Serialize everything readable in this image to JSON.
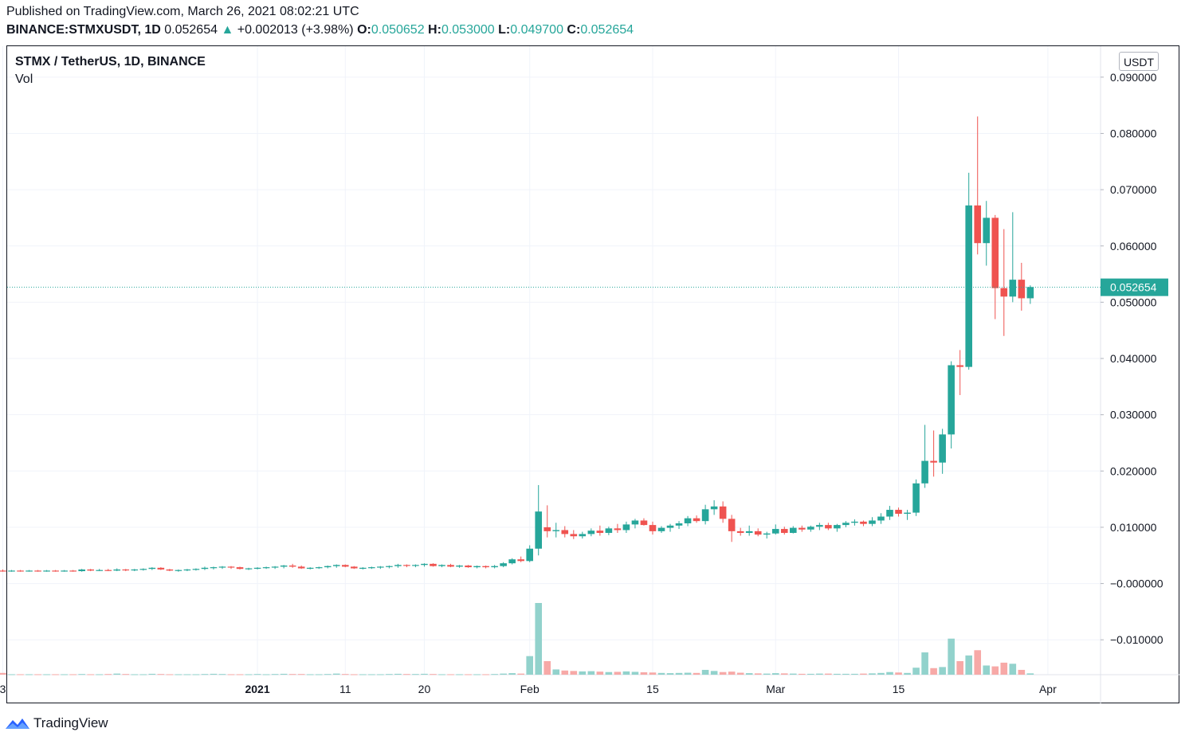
{
  "header": {
    "published": "Published on TradingView.com, March 26, 2021 08:02:21 UTC",
    "symbol": "BINANCE:STMXUSDT, 1D",
    "last": "0.052654",
    "arrow": "▲",
    "change": "+0.002013 (+3.98%)",
    "o_label": "O:",
    "o_value": "0.050652",
    "h_label": "H:",
    "h_value": "0.053000",
    "l_label": "L:",
    "l_value": "0.049700",
    "c_label": "C:",
    "c_value": "0.052654"
  },
  "legend": {
    "title": "STMX / TetherUS, 1D, BINANCE",
    "vol": "Vol"
  },
  "currency_button": "USDT",
  "footer": {
    "brand": "TradingView"
  },
  "colors": {
    "up": "#26a69a",
    "down": "#ef5350",
    "vol_up": "#92d2cc",
    "vol_down": "#f7a9a7",
    "grid": "#f0f3fa"
  },
  "chart_data": {
    "type": "candlestick",
    "y_ticks": [
      "0.090000",
      "0.080000",
      "0.070000",
      "0.060000",
      "0.050000",
      "0.040000",
      "0.030000",
      "0.020000",
      "0.010000",
      "−0.000000",
      "−0.010000"
    ],
    "y_tick_values": [
      0.09,
      0.08,
      0.07,
      0.06,
      0.05,
      0.04,
      0.03,
      0.02,
      0.01,
      0,
      -0.01
    ],
    "x_ticks": [
      {
        "label": "3",
        "day": 3
      },
      {
        "label": "2021",
        "day": 32
      },
      {
        "label": "11",
        "day": 42
      },
      {
        "label": "20",
        "day": 51
      },
      {
        "label": "Feb",
        "day": 63
      },
      {
        "label": "15",
        "day": 77
      },
      {
        "label": "Mar",
        "day": 91
      },
      {
        "label": "15",
        "day": 105
      },
      {
        "label": "Apr",
        "day": 122
      }
    ],
    "x_range_days": [
      3.5,
      128
    ],
    "y_range": [
      -0.0162,
      0.0955
    ],
    "last_price": 0.052654,
    "last_price_label": "0.052654",
    "vol_max": 1.0,
    "candles": [
      {
        "d": 3,
        "o": 0.0023,
        "h": 0.0025,
        "l": 0.0021,
        "c": 0.0022,
        "v": 0.08
      },
      {
        "d": 4,
        "o": 0.0022,
        "h": 0.0024,
        "l": 0.0021,
        "c": 0.0023,
        "v": 0.02
      },
      {
        "d": 5,
        "o": 0.0023,
        "h": 0.0024,
        "l": 0.0021,
        "c": 0.0022,
        "v": 0.02
      },
      {
        "d": 6,
        "o": 0.0022,
        "h": 0.0024,
        "l": 0.0021,
        "c": 0.0023,
        "v": 0.02
      },
      {
        "d": 7,
        "o": 0.0023,
        "h": 0.0024,
        "l": 0.0021,
        "c": 0.0022,
        "v": 0.02
      },
      {
        "d": 8,
        "o": 0.0022,
        "h": 0.0024,
        "l": 0.0021,
        "c": 0.0023,
        "v": 0.02
      },
      {
        "d": 9,
        "o": 0.0023,
        "h": 0.0024,
        "l": 0.0021,
        "c": 0.0022,
        "v": 0.02
      },
      {
        "d": 10,
        "o": 0.0022,
        "h": 0.0024,
        "l": 0.0021,
        "c": 0.0023,
        "v": 0.02
      },
      {
        "d": 11,
        "o": 0.0023,
        "h": 0.0024,
        "l": 0.0021,
        "c": 0.0022,
        "v": 0.02
      },
      {
        "d": 12,
        "o": 0.0022,
        "h": 0.0026,
        "l": 0.0021,
        "c": 0.0025,
        "v": 0.03
      },
      {
        "d": 13,
        "o": 0.0025,
        "h": 0.0026,
        "l": 0.0022,
        "c": 0.0023,
        "v": 0.02
      },
      {
        "d": 14,
        "o": 0.0023,
        "h": 0.0026,
        "l": 0.0022,
        "c": 0.0024,
        "v": 0.02
      },
      {
        "d": 15,
        "o": 0.0024,
        "h": 0.0026,
        "l": 0.0022,
        "c": 0.0023,
        "v": 0.03
      },
      {
        "d": 16,
        "o": 0.0023,
        "h": 0.0027,
        "l": 0.0022,
        "c": 0.0025,
        "v": 0.05
      },
      {
        "d": 17,
        "o": 0.0025,
        "h": 0.0026,
        "l": 0.0022,
        "c": 0.0024,
        "v": 0.03
      },
      {
        "d": 18,
        "o": 0.0024,
        "h": 0.0026,
        "l": 0.0022,
        "c": 0.0025,
        "v": 0.02
      },
      {
        "d": 19,
        "o": 0.0025,
        "h": 0.0027,
        "l": 0.0023,
        "c": 0.0026,
        "v": 0.02
      },
      {
        "d": 20,
        "o": 0.0026,
        "h": 0.0029,
        "l": 0.0024,
        "c": 0.0028,
        "v": 0.04
      },
      {
        "d": 21,
        "o": 0.0028,
        "h": 0.0029,
        "l": 0.0024,
        "c": 0.0025,
        "v": 0.03
      },
      {
        "d": 22,
        "o": 0.0025,
        "h": 0.0026,
        "l": 0.0022,
        "c": 0.0023,
        "v": 0.02
      },
      {
        "d": 23,
        "o": 0.0023,
        "h": 0.0025,
        "l": 0.0021,
        "c": 0.0024,
        "v": 0.02
      },
      {
        "d": 24,
        "o": 0.0024,
        "h": 0.0026,
        "l": 0.0022,
        "c": 0.0025,
        "v": 0.02
      },
      {
        "d": 25,
        "o": 0.0025,
        "h": 0.0027,
        "l": 0.0023,
        "c": 0.0026,
        "v": 0.02
      },
      {
        "d": 26,
        "o": 0.0026,
        "h": 0.003,
        "l": 0.0024,
        "c": 0.0028,
        "v": 0.03
      },
      {
        "d": 27,
        "o": 0.0028,
        "h": 0.003,
        "l": 0.0025,
        "c": 0.0029,
        "v": 0.04
      },
      {
        "d": 28,
        "o": 0.0029,
        "h": 0.0031,
        "l": 0.0026,
        "c": 0.003,
        "v": 0.03
      },
      {
        "d": 29,
        "o": 0.003,
        "h": 0.0031,
        "l": 0.0026,
        "c": 0.0029,
        "v": 0.02
      },
      {
        "d": 30,
        "o": 0.0029,
        "h": 0.003,
        "l": 0.0025,
        "c": 0.0026,
        "v": 0.02
      },
      {
        "d": 31,
        "o": 0.0026,
        "h": 0.0028,
        "l": 0.0024,
        "c": 0.0027,
        "v": 0.02
      },
      {
        "d": 32,
        "o": 0.0027,
        "h": 0.0029,
        "l": 0.0025,
        "c": 0.0028,
        "v": 0.03
      },
      {
        "d": 33,
        "o": 0.0028,
        "h": 0.003,
        "l": 0.0026,
        "c": 0.0029,
        "v": 0.02
      },
      {
        "d": 34,
        "o": 0.0029,
        "h": 0.0031,
        "l": 0.0026,
        "c": 0.003,
        "v": 0.03
      },
      {
        "d": 35,
        "o": 0.003,
        "h": 0.0033,
        "l": 0.0027,
        "c": 0.0032,
        "v": 0.04
      },
      {
        "d": 36,
        "o": 0.0032,
        "h": 0.0035,
        "l": 0.0028,
        "c": 0.003,
        "v": 0.03
      },
      {
        "d": 37,
        "o": 0.003,
        "h": 0.0032,
        "l": 0.0026,
        "c": 0.0027,
        "v": 0.03
      },
      {
        "d": 38,
        "o": 0.0027,
        "h": 0.0029,
        "l": 0.0025,
        "c": 0.0028,
        "v": 0.02
      },
      {
        "d": 39,
        "o": 0.0028,
        "h": 0.003,
        "l": 0.0026,
        "c": 0.0029,
        "v": 0.02
      },
      {
        "d": 40,
        "o": 0.0029,
        "h": 0.0032,
        "l": 0.0027,
        "c": 0.0031,
        "v": 0.03
      },
      {
        "d": 41,
        "o": 0.0031,
        "h": 0.0034,
        "l": 0.0028,
        "c": 0.0033,
        "v": 0.05
      },
      {
        "d": 42,
        "o": 0.0033,
        "h": 0.0034,
        "l": 0.0029,
        "c": 0.003,
        "v": 0.03
      },
      {
        "d": 43,
        "o": 0.003,
        "h": 0.0031,
        "l": 0.0026,
        "c": 0.0027,
        "v": 0.02
      },
      {
        "d": 44,
        "o": 0.0027,
        "h": 0.0029,
        "l": 0.0025,
        "c": 0.0028,
        "v": 0.02
      },
      {
        "d": 45,
        "o": 0.0028,
        "h": 0.003,
        "l": 0.0026,
        "c": 0.0029,
        "v": 0.02
      },
      {
        "d": 46,
        "o": 0.0029,
        "h": 0.0031,
        "l": 0.0026,
        "c": 0.003,
        "v": 0.02
      },
      {
        "d": 47,
        "o": 0.003,
        "h": 0.0032,
        "l": 0.0027,
        "c": 0.0031,
        "v": 0.03
      },
      {
        "d": 48,
        "o": 0.0031,
        "h": 0.0035,
        "l": 0.0028,
        "c": 0.0033,
        "v": 0.04
      },
      {
        "d": 49,
        "o": 0.0033,
        "h": 0.0034,
        "l": 0.0029,
        "c": 0.0032,
        "v": 0.03
      },
      {
        "d": 50,
        "o": 0.0032,
        "h": 0.0034,
        "l": 0.0029,
        "c": 0.0033,
        "v": 0.03
      },
      {
        "d": 51,
        "o": 0.0033,
        "h": 0.0036,
        "l": 0.003,
        "c": 0.0035,
        "v": 0.04
      },
      {
        "d": 52,
        "o": 0.0035,
        "h": 0.0036,
        "l": 0.003,
        "c": 0.0031,
        "v": 0.03
      },
      {
        "d": 53,
        "o": 0.0031,
        "h": 0.0034,
        "l": 0.0029,
        "c": 0.0033,
        "v": 0.02
      },
      {
        "d": 54,
        "o": 0.0033,
        "h": 0.0035,
        "l": 0.0029,
        "c": 0.003,
        "v": 0.02
      },
      {
        "d": 55,
        "o": 0.003,
        "h": 0.0033,
        "l": 0.0028,
        "c": 0.0032,
        "v": 0.02
      },
      {
        "d": 56,
        "o": 0.0032,
        "h": 0.0033,
        "l": 0.0028,
        "c": 0.0029,
        "v": 0.02
      },
      {
        "d": 57,
        "o": 0.0029,
        "h": 0.0032,
        "l": 0.0027,
        "c": 0.0031,
        "v": 0.02
      },
      {
        "d": 58,
        "o": 0.0031,
        "h": 0.0032,
        "l": 0.0027,
        "c": 0.0029,
        "v": 0.02
      },
      {
        "d": 59,
        "o": 0.0029,
        "h": 0.0033,
        "l": 0.0027,
        "c": 0.0031,
        "v": 0.03
      },
      {
        "d": 60,
        "o": 0.0031,
        "h": 0.0038,
        "l": 0.0029,
        "c": 0.0036,
        "v": 0.05
      },
      {
        "d": 61,
        "o": 0.0036,
        "h": 0.0045,
        "l": 0.0034,
        "c": 0.0043,
        "v": 0.07
      },
      {
        "d": 62,
        "o": 0.0043,
        "h": 0.0048,
        "l": 0.0038,
        "c": 0.004,
        "v": 0.05
      },
      {
        "d": 63,
        "o": 0.004,
        "h": 0.0068,
        "l": 0.0038,
        "c": 0.0062,
        "v": 0.85
      },
      {
        "d": 64,
        "o": 0.0062,
        "h": 0.0175,
        "l": 0.005,
        "c": 0.0128,
        "v": 3.28
      },
      {
        "d": 65,
        "o": 0.01,
        "h": 0.0139,
        "l": 0.0082,
        "c": 0.0093,
        "v": 0.62
      },
      {
        "d": 66,
        "o": 0.0093,
        "h": 0.0108,
        "l": 0.0082,
        "c": 0.0095,
        "v": 0.24
      },
      {
        "d": 67,
        "o": 0.0095,
        "h": 0.0102,
        "l": 0.0082,
        "c": 0.0088,
        "v": 0.19
      },
      {
        "d": 68,
        "o": 0.0088,
        "h": 0.0095,
        "l": 0.0079,
        "c": 0.0084,
        "v": 0.17
      },
      {
        "d": 69,
        "o": 0.0084,
        "h": 0.0092,
        "l": 0.008,
        "c": 0.0088,
        "v": 0.15
      },
      {
        "d": 70,
        "o": 0.0088,
        "h": 0.0098,
        "l": 0.0084,
        "c": 0.0094,
        "v": 0.16
      },
      {
        "d": 71,
        "o": 0.0094,
        "h": 0.0103,
        "l": 0.0085,
        "c": 0.009,
        "v": 0.14
      },
      {
        "d": 72,
        "o": 0.009,
        "h": 0.0101,
        "l": 0.0086,
        "c": 0.0098,
        "v": 0.12
      },
      {
        "d": 73,
        "o": 0.0098,
        "h": 0.0106,
        "l": 0.009,
        "c": 0.0095,
        "v": 0.13
      },
      {
        "d": 74,
        "o": 0.0095,
        "h": 0.011,
        "l": 0.009,
        "c": 0.0105,
        "v": 0.15
      },
      {
        "d": 75,
        "o": 0.0105,
        "h": 0.0115,
        "l": 0.0098,
        "c": 0.0112,
        "v": 0.13
      },
      {
        "d": 76,
        "o": 0.0112,
        "h": 0.0116,
        "l": 0.0103,
        "c": 0.0104,
        "v": 0.11
      },
      {
        "d": 77,
        "o": 0.0104,
        "h": 0.011,
        "l": 0.0087,
        "c": 0.0093,
        "v": 0.1
      },
      {
        "d": 78,
        "o": 0.0093,
        "h": 0.0102,
        "l": 0.009,
        "c": 0.0099,
        "v": 0.08
      },
      {
        "d": 79,
        "o": 0.0099,
        "h": 0.0106,
        "l": 0.0092,
        "c": 0.0103,
        "v": 0.07
      },
      {
        "d": 80,
        "o": 0.0103,
        "h": 0.0111,
        "l": 0.0097,
        "c": 0.0107,
        "v": 0.08
      },
      {
        "d": 81,
        "o": 0.0107,
        "h": 0.012,
        "l": 0.0102,
        "c": 0.0116,
        "v": 0.09
      },
      {
        "d": 82,
        "o": 0.0116,
        "h": 0.0121,
        "l": 0.0108,
        "c": 0.0111,
        "v": 0.08
      },
      {
        "d": 83,
        "o": 0.0111,
        "h": 0.014,
        "l": 0.0105,
        "c": 0.0132,
        "v": 0.22
      },
      {
        "d": 84,
        "o": 0.0132,
        "h": 0.0148,
        "l": 0.0122,
        "c": 0.0137,
        "v": 0.17
      },
      {
        "d": 85,
        "o": 0.0137,
        "h": 0.0146,
        "l": 0.0108,
        "c": 0.0115,
        "v": 0.12
      },
      {
        "d": 86,
        "o": 0.0115,
        "h": 0.0122,
        "l": 0.0074,
        "c": 0.0093,
        "v": 0.14
      },
      {
        "d": 87,
        "o": 0.0093,
        "h": 0.0099,
        "l": 0.0085,
        "c": 0.009,
        "v": 0.09
      },
      {
        "d": 88,
        "o": 0.009,
        "h": 0.0103,
        "l": 0.0085,
        "c": 0.0093,
        "v": 0.07
      },
      {
        "d": 89,
        "o": 0.0093,
        "h": 0.0098,
        "l": 0.0084,
        "c": 0.0087,
        "v": 0.06
      },
      {
        "d": 90,
        "o": 0.0087,
        "h": 0.0092,
        "l": 0.008,
        "c": 0.0089,
        "v": 0.05
      },
      {
        "d": 91,
        "o": 0.0089,
        "h": 0.0105,
        "l": 0.0087,
        "c": 0.0097,
        "v": 0.07
      },
      {
        "d": 92,
        "o": 0.0097,
        "h": 0.0101,
        "l": 0.0087,
        "c": 0.009,
        "v": 0.06
      },
      {
        "d": 93,
        "o": 0.009,
        "h": 0.0102,
        "l": 0.0089,
        "c": 0.0099,
        "v": 0.05
      },
      {
        "d": 94,
        "o": 0.0099,
        "h": 0.0103,
        "l": 0.0092,
        "c": 0.0096,
        "v": 0.04
      },
      {
        "d": 95,
        "o": 0.0096,
        "h": 0.0103,
        "l": 0.0092,
        "c": 0.0101,
        "v": 0.04
      },
      {
        "d": 96,
        "o": 0.0101,
        "h": 0.0108,
        "l": 0.0095,
        "c": 0.0104,
        "v": 0.05
      },
      {
        "d": 97,
        "o": 0.0104,
        "h": 0.0108,
        "l": 0.0095,
        "c": 0.0098,
        "v": 0.05
      },
      {
        "d": 98,
        "o": 0.0098,
        "h": 0.0106,
        "l": 0.0092,
        "c": 0.0104,
        "v": 0.04
      },
      {
        "d": 99,
        "o": 0.0104,
        "h": 0.0111,
        "l": 0.01,
        "c": 0.0108,
        "v": 0.04
      },
      {
        "d": 100,
        "o": 0.0108,
        "h": 0.0114,
        "l": 0.0103,
        "c": 0.011,
        "v": 0.04
      },
      {
        "d": 101,
        "o": 0.011,
        "h": 0.0112,
        "l": 0.0102,
        "c": 0.0106,
        "v": 0.05
      },
      {
        "d": 102,
        "o": 0.0106,
        "h": 0.0118,
        "l": 0.0102,
        "c": 0.0112,
        "v": 0.06
      },
      {
        "d": 103,
        "o": 0.0112,
        "h": 0.0125,
        "l": 0.0106,
        "c": 0.0119,
        "v": 0.08
      },
      {
        "d": 104,
        "o": 0.0119,
        "h": 0.0138,
        "l": 0.0113,
        "c": 0.0131,
        "v": 0.12
      },
      {
        "d": 105,
        "o": 0.0131,
        "h": 0.0135,
        "l": 0.0119,
        "c": 0.0124,
        "v": 0.1
      },
      {
        "d": 106,
        "o": 0.0124,
        "h": 0.0131,
        "l": 0.0113,
        "c": 0.0126,
        "v": 0.08
      },
      {
        "d": 107,
        "o": 0.0126,
        "h": 0.0185,
        "l": 0.012,
        "c": 0.0178,
        "v": 0.32
      },
      {
        "d": 108,
        "o": 0.0178,
        "h": 0.0282,
        "l": 0.017,
        "c": 0.0218,
        "v": 1.02
      },
      {
        "d": 109,
        "o": 0.0218,
        "h": 0.0272,
        "l": 0.019,
        "c": 0.0215,
        "v": 0.3
      },
      {
        "d": 110,
        "o": 0.0215,
        "h": 0.0275,
        "l": 0.0195,
        "c": 0.0265,
        "v": 0.35
      },
      {
        "d": 111,
        "o": 0.0265,
        "h": 0.0395,
        "l": 0.024,
        "c": 0.0388,
        "v": 1.65
      },
      {
        "d": 112,
        "o": 0.0388,
        "h": 0.0415,
        "l": 0.0335,
        "c": 0.0385,
        "v": 0.62
      },
      {
        "d": 113,
        "o": 0.0385,
        "h": 0.073,
        "l": 0.038,
        "c": 0.0672,
        "v": 0.88
      },
      {
        "d": 114,
        "o": 0.0672,
        "h": 0.083,
        "l": 0.0585,
        "c": 0.0605,
        "v": 1.12
      },
      {
        "d": 115,
        "o": 0.0605,
        "h": 0.068,
        "l": 0.0565,
        "c": 0.065,
        "v": 0.42
      },
      {
        "d": 116,
        "o": 0.065,
        "h": 0.0655,
        "l": 0.047,
        "c": 0.0525,
        "v": 0.38
      },
      {
        "d": 117,
        "o": 0.0525,
        "h": 0.063,
        "l": 0.044,
        "c": 0.051,
        "v": 0.55
      },
      {
        "d": 118,
        "o": 0.051,
        "h": 0.066,
        "l": 0.05,
        "c": 0.054,
        "v": 0.5
      },
      {
        "d": 119,
        "o": 0.054,
        "h": 0.057,
        "l": 0.0485,
        "c": 0.0507,
        "v": 0.22
      },
      {
        "d": 120,
        "o": 0.0507,
        "h": 0.053,
        "l": 0.0497,
        "c": 0.0527,
        "v": 0.06
      }
    ]
  }
}
